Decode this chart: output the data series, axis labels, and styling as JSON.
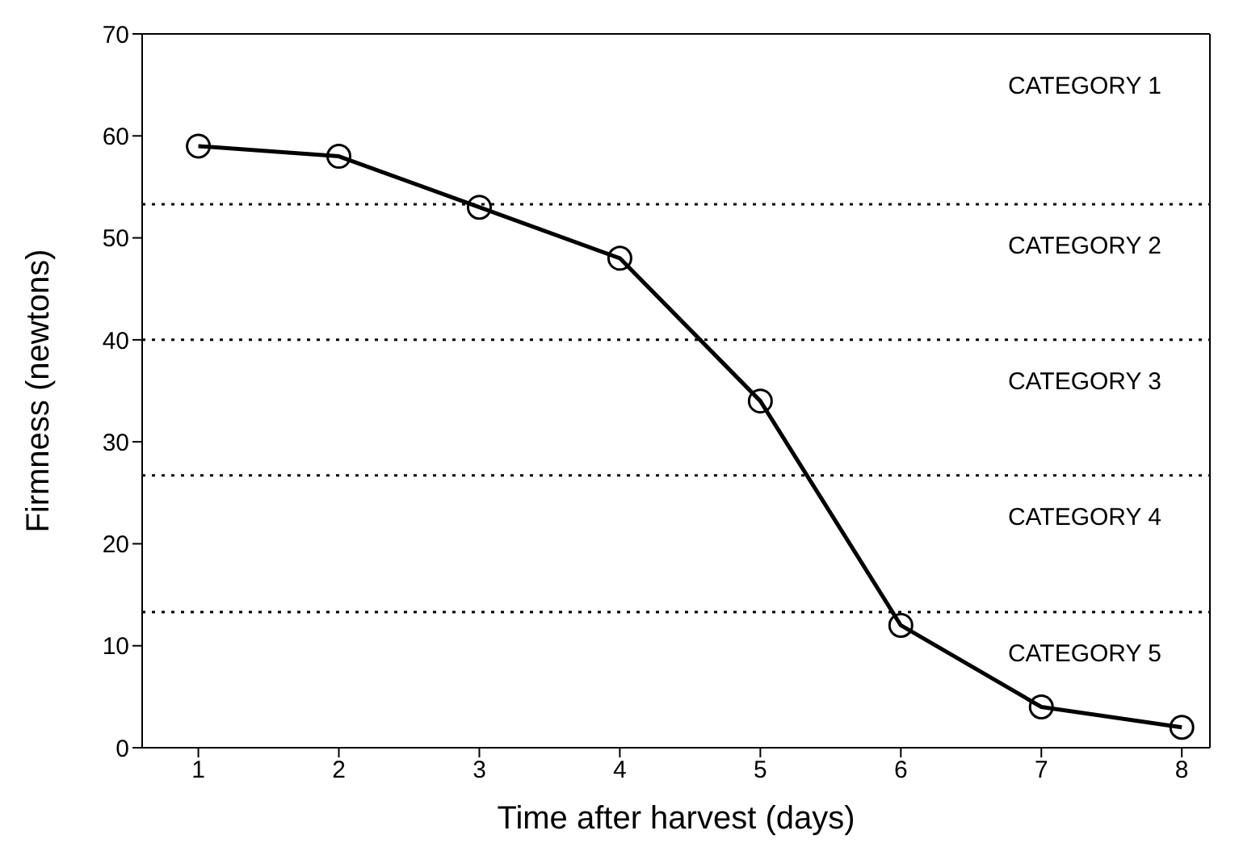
{
  "chart_data": {
    "type": "line",
    "xlabel": "Time after harvest (days)",
    "ylabel": "Firmness (newtons)",
    "x": [
      1,
      2,
      3,
      4,
      5,
      6,
      7,
      8
    ],
    "series": [
      {
        "color": "#000000",
        "values": [
          59,
          58,
          53,
          48,
          34,
          12,
          4,
          2
        ]
      }
    ],
    "xlim": [
      0.6,
      8.2
    ],
    "xticks": [
      1,
      2,
      3,
      4,
      5,
      6,
      7,
      8
    ],
    "ylim": [
      0,
      70
    ],
    "yticks": [
      0,
      10,
      20,
      30,
      40,
      50,
      60,
      70
    ],
    "grid": false,
    "legend": false,
    "marker": "circle",
    "line_style": "solid",
    "ref_lines": [
      {
        "axis": "y",
        "value": 53.3,
        "line_style": "dotted",
        "color": "#000000"
      },
      {
        "axis": "y",
        "value": 40,
        "line_style": "dotted",
        "color": "#000000"
      },
      {
        "axis": "y",
        "value": 26.7,
        "line_style": "dotted",
        "color": "#000000"
      },
      {
        "axis": "y",
        "value": 13.3,
        "line_style": "dotted",
        "color": "#000000"
      }
    ],
    "annotations": [
      "CATEGORY 1",
      "CATEGORY 2",
      "CATEGORY 3",
      "CATEGORY 4",
      "CATEGORY 5"
    ]
  }
}
